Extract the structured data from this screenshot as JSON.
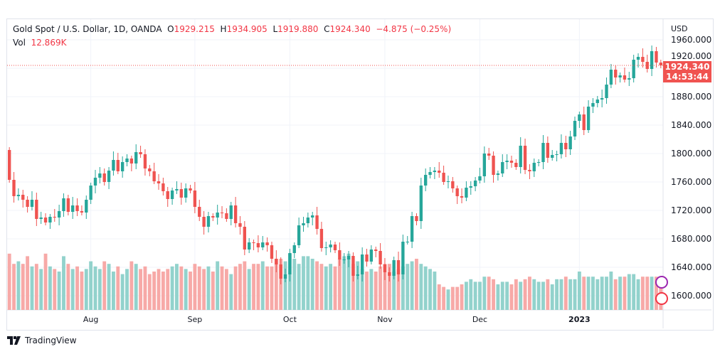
{
  "header": {
    "symbol": "Gold Spot / U.S. Dollar, 1D, OANDA",
    "open_label": "O",
    "open": "1929.215",
    "high_label": "H",
    "high": "1934.905",
    "low_label": "L",
    "low": "1919.880",
    "close_label": "C",
    "close": "1924.340",
    "change": "−4.875 (−0.25%)",
    "vol_label": "Vol",
    "vol": "12.869K"
  },
  "price_label": {
    "price": "1924.340",
    "countdown": "14:53:44"
  },
  "branding": "TradingView",
  "colors": {
    "up": "#26a69a",
    "down": "#ef5350",
    "vol_up": "#92d2cc",
    "vol_down": "#f7a9a7"
  },
  "chart_data": {
    "type": "candlestick",
    "currency": "USD",
    "y_ticks": [
      "1960.000",
      "1920.000",
      "1880.000",
      "1840.000",
      "1800.000",
      "1760.000",
      "1720.000",
      "1680.000",
      "1640.000",
      "1600.000"
    ],
    "ylim": [
      1580,
      1980
    ],
    "x_ticks": [
      {
        "label": "Aug",
        "index": 18
      },
      {
        "label": "Sep",
        "index": 41
      },
      {
        "label": "Oct",
        "index": 62
      },
      {
        "label": "Nov",
        "index": 83
      },
      {
        "label": "Dec",
        "index": 104
      },
      {
        "label": "2023",
        "index": 126
      }
    ],
    "first_open": 1805,
    "closes": [
      1763,
      1740,
      1742,
      1735,
      1725,
      1735,
      1708,
      1710,
      1703,
      1711,
      1710,
      1719,
      1737,
      1718,
      1727,
      1719,
      1717,
      1735,
      1755,
      1766,
      1772,
      1760,
      1776,
      1791,
      1775,
      1788,
      1793,
      1786,
      1802,
      1799,
      1779,
      1775,
      1761,
      1758,
      1747,
      1736,
      1748,
      1750,
      1738,
      1751,
      1748,
      1725,
      1711,
      1697,
      1712,
      1710,
      1717,
      1716,
      1708,
      1727,
      1702,
      1697,
      1665,
      1675,
      1674,
      1668,
      1675,
      1671,
      1652,
      1644,
      1624,
      1630,
      1660,
      1671,
      1699,
      1702,
      1710,
      1713,
      1694,
      1667,
      1668,
      1672,
      1664,
      1651,
      1651,
      1656,
      1628,
      1630,
      1658,
      1648,
      1665,
      1663,
      1644,
      1633,
      1628,
      1650,
      1630,
      1676,
      1676,
      1712,
      1705,
      1755,
      1770,
      1774,
      1776,
      1773,
      1760,
      1761,
      1751,
      1740,
      1738,
      1752,
      1754,
      1762,
      1768,
      1800,
      1797,
      1770,
      1772,
      1788,
      1790,
      1787,
      1781,
      1811,
      1777,
      1775,
      1787,
      1788,
      1815,
      1794,
      1798,
      1799,
      1815,
      1806,
      1824,
      1846,
      1855,
      1833,
      1866,
      1871,
      1876,
      1878,
      1897,
      1918,
      1907,
      1910,
      1904,
      1906,
      1932,
      1936,
      1929,
      1919,
      1944,
      1928,
      1924
    ],
    "volumes_k": [
      22,
      18,
      19,
      18,
      21,
      17,
      18,
      16,
      22,
      17,
      16,
      15,
      21,
      18,
      16,
      17,
      15,
      16,
      19,
      17,
      16,
      19,
      18,
      15,
      17,
      14,
      16,
      19,
      18,
      16,
      17,
      14,
      15,
      16,
      15,
      16,
      17,
      18,
      17,
      16,
      15,
      18,
      17,
      16,
      17,
      15,
      19,
      17,
      16,
      14,
      17,
      18,
      19,
      16,
      18,
      18,
      19,
      17,
      17,
      20,
      20,
      19,
      22,
      20,
      18,
      21,
      21,
      20,
      19,
      18,
      17,
      18,
      17,
      20,
      21,
      22,
      18,
      19,
      16,
      15,
      16,
      15,
      17,
      18,
      18,
      15,
      16,
      17,
      18,
      19,
      20,
      18,
      17,
      16,
      15,
      10,
      9,
      8,
      9,
      9,
      10,
      11,
      12,
      11,
      11,
      13,
      13,
      12,
      10,
      11,
      11,
      10,
      12,
      11,
      12,
      13,
      12,
      11,
      11,
      12,
      10,
      12,
      12,
      13,
      12,
      12,
      15,
      13,
      13,
      13,
      12,
      13,
      13,
      15,
      12,
      13,
      13,
      14,
      14,
      12,
      13,
      13,
      13,
      13,
      13
    ]
  }
}
